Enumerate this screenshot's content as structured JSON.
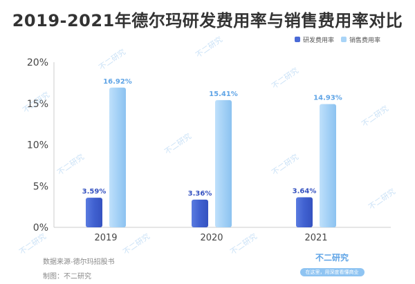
{
  "header": {
    "title": "2019-2021年德尔玛研发费用率与销售费用率对比"
  },
  "legend": {
    "items": [
      {
        "label": "研发费用率",
        "color": "#4a6ad6"
      },
      {
        "label": "销售费用率",
        "color": "#a9d4f7"
      }
    ]
  },
  "footer": {
    "source": "数据来源-德尔玛招股书",
    "maker": "制图：不二研究"
  },
  "brand": {
    "name": "不二研究",
    "slogan": "在这里，用深度看懂商业"
  },
  "watermark": {
    "text": "不二研究"
  },
  "chart_data": {
    "type": "bar",
    "title": "2019-2021年德尔玛研发费用率与销售费用率对比",
    "categories": [
      "2019",
      "2020",
      "2021"
    ],
    "series": [
      {
        "name": "研发费用率",
        "values": [
          3.59,
          3.36,
          3.64
        ],
        "labels": [
          "3.59%",
          "3.36%",
          "3.64%"
        ],
        "color": "#4a6ad6"
      },
      {
        "name": "销售费用率",
        "values": [
          16.92,
          15.41,
          14.93
        ],
        "labels": [
          "16.92%",
          "15.41%",
          "14.93%"
        ],
        "color": "#a9d4f7"
      }
    ],
    "y_ticks": [
      "0%",
      "5%",
      "10%",
      "15%",
      "20%"
    ],
    "y_tick_values": [
      0,
      5,
      10,
      15,
      20
    ],
    "ylim": [
      0,
      20
    ],
    "grid": false,
    "legend_position": "top-right"
  }
}
